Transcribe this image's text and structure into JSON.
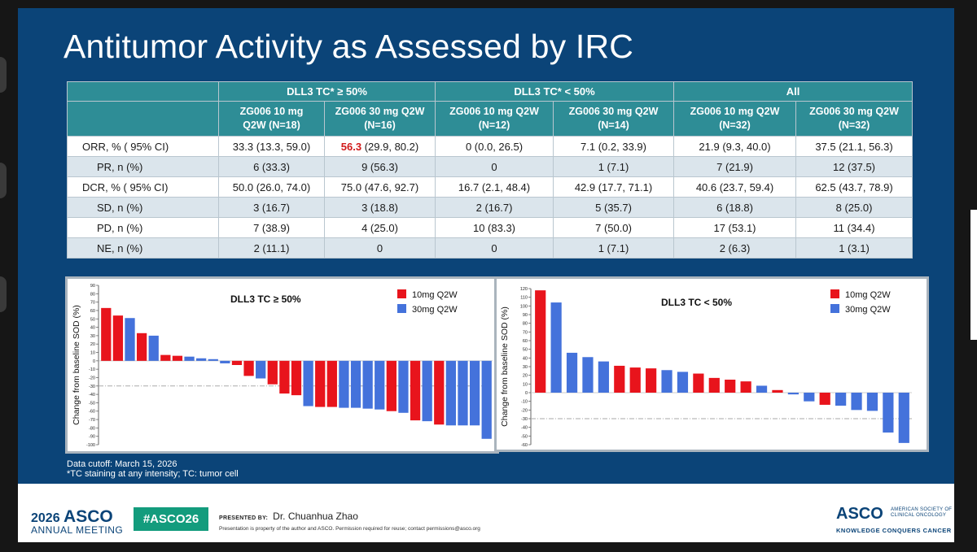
{
  "slide": {
    "title": "Antitumor Activity as Assessed by IRC"
  },
  "table": {
    "group_headers": [
      "DLL3 TC* ≥ 50%",
      "DLL3 TC* < 50%",
      "All"
    ],
    "col_headers": [
      [
        "ZG006 10 mg",
        "Q2W (N=18)"
      ],
      [
        "ZG006 30 mg Q2W",
        "(N=16)"
      ],
      [
        "ZG006 10 mg Q2W",
        "(N=12)"
      ],
      [
        "ZG006 30 mg Q2W",
        "(N=14)"
      ],
      [
        "ZG006 10 mg Q2W",
        "(N=32)"
      ],
      [
        "ZG006 30 mg Q2W",
        "(N=32)"
      ]
    ],
    "rows": [
      {
        "label": "ORR, % ( 95% CI)",
        "indent": false,
        "cells": [
          "33.3 (13.3, 59.0)",
          "56.3|(29.9, 80.2)",
          "0 (0.0, 26.5)",
          "7.1 (0.2, 33.9)",
          "21.9 (9.3, 40.0)",
          "37.5 (21.1, 56.3)"
        ]
      },
      {
        "label": "PR, n (%)",
        "indent": true,
        "cells": [
          "6 (33.3)",
          "9 (56.3)",
          "0",
          "1 (7.1)",
          "7 (21.9)",
          "12 (37.5)"
        ]
      },
      {
        "label": "DCR, % ( 95% CI)",
        "indent": false,
        "cells": [
          "50.0 (26.0, 74.0)",
          "75.0 (47.6, 92.7)",
          "16.7 (2.1, 48.4)",
          "42.9 (17.7, 71.1)",
          "40.6 (23.7, 59.4)",
          "62.5 (43.7, 78.9)"
        ]
      },
      {
        "label": "SD, n (%)",
        "indent": true,
        "cells": [
          "3 (16.7)",
          "3 (18.8)",
          "2 (16.7)",
          "5 (35.7)",
          "6 (18.8)",
          "8 (25.0)"
        ]
      },
      {
        "label": "PD, n (%)",
        "indent": true,
        "cells": [
          "7 (38.9)",
          "4 (25.0)",
          "10 (83.3)",
          "7 (50.0)",
          "17 (53.1)",
          "11 (34.4)"
        ]
      },
      {
        "label": "NE, n (%)",
        "indent": true,
        "cells": [
          "2 (11.1)",
          "0",
          "0",
          "1 (7.1)",
          "2 (6.3)",
          "1 (3.1)"
        ]
      }
    ],
    "highlight": {
      "row": 0,
      "col": 1,
      "color": "#d11a1a"
    }
  },
  "chart_data": [
    {
      "type": "bar",
      "title": "DLL3 TC ≥ 50%",
      "ylabel": "Change from baseline SOD (%)",
      "ylim": [
        -100,
        90
      ],
      "yticks": [
        90,
        80,
        70,
        60,
        50,
        40,
        30,
        20,
        10,
        0,
        -10,
        -20,
        -30,
        -40,
        -50,
        -60,
        -70,
        -80,
        -90,
        -100
      ],
      "reference_line": -30,
      "legend": [
        {
          "name": "10mg Q2W",
          "color": "#e8141c"
        },
        {
          "name": "30mg Q2W",
          "color": "#4472db"
        }
      ],
      "legend_position": "top-right",
      "bars": [
        {
          "value": 63,
          "series": "10mg Q2W"
        },
        {
          "value": 54,
          "series": "10mg Q2W"
        },
        {
          "value": 51,
          "series": "30mg Q2W"
        },
        {
          "value": 33,
          "series": "10mg Q2W"
        },
        {
          "value": 30,
          "series": "30mg Q2W"
        },
        {
          "value": 7,
          "series": "10mg Q2W"
        },
        {
          "value": 6,
          "series": "10mg Q2W"
        },
        {
          "value": 5,
          "series": "30mg Q2W"
        },
        {
          "value": 3,
          "series": "30mg Q2W"
        },
        {
          "value": 2,
          "series": "30mg Q2W"
        },
        {
          "value": -3,
          "series": "30mg Q2W"
        },
        {
          "value": -5,
          "series": "10mg Q2W"
        },
        {
          "value": -18,
          "series": "10mg Q2W"
        },
        {
          "value": -21,
          "series": "30mg Q2W"
        },
        {
          "value": -28,
          "series": "10mg Q2W"
        },
        {
          "value": -39,
          "series": "10mg Q2W"
        },
        {
          "value": -41,
          "series": "10mg Q2W"
        },
        {
          "value": -54,
          "series": "30mg Q2W"
        },
        {
          "value": -55,
          "series": "10mg Q2W"
        },
        {
          "value": -55,
          "series": "10mg Q2W"
        },
        {
          "value": -56,
          "series": "30mg Q2W"
        },
        {
          "value": -56,
          "series": "30mg Q2W"
        },
        {
          "value": -57,
          "series": "30mg Q2W"
        },
        {
          "value": -58,
          "series": "30mg Q2W"
        },
        {
          "value": -60,
          "series": "10mg Q2W"
        },
        {
          "value": -62,
          "series": "30mg Q2W"
        },
        {
          "value": -71,
          "series": "10mg Q2W"
        },
        {
          "value": -72,
          "series": "30mg Q2W"
        },
        {
          "value": -76,
          "series": "10mg Q2W"
        },
        {
          "value": -77,
          "series": "30mg Q2W"
        },
        {
          "value": -77,
          "series": "30mg Q2W"
        },
        {
          "value": -77,
          "series": "30mg Q2W"
        },
        {
          "value": -93,
          "series": "30mg Q2W"
        }
      ]
    },
    {
      "type": "bar",
      "title": "DLL3 TC  <  50%",
      "ylabel": "Change from baseline SOD (%)",
      "ylim": [
        -60,
        120
      ],
      "yticks": [
        120,
        110,
        100,
        90,
        80,
        70,
        60,
        50,
        40,
        30,
        20,
        10,
        0,
        -10,
        -20,
        -30,
        -40,
        -50,
        -60
      ],
      "reference_line": -30,
      "legend": [
        {
          "name": "10mg Q2W",
          "color": "#e8141c"
        },
        {
          "name": "30mg Q2W",
          "color": "#4472db"
        }
      ],
      "legend_position": "top-right",
      "bars": [
        {
          "value": 118,
          "series": "10mg Q2W"
        },
        {
          "value": 104,
          "series": "30mg Q2W"
        },
        {
          "value": 46,
          "series": "30mg Q2W"
        },
        {
          "value": 41,
          "series": "30mg Q2W"
        },
        {
          "value": 36,
          "series": "30mg Q2W"
        },
        {
          "value": 31,
          "series": "10mg Q2W"
        },
        {
          "value": 29,
          "series": "10mg Q2W"
        },
        {
          "value": 28,
          "series": "10mg Q2W"
        },
        {
          "value": 26,
          "series": "30mg Q2W"
        },
        {
          "value": 24,
          "series": "30mg Q2W"
        },
        {
          "value": 22,
          "series": "10mg Q2W"
        },
        {
          "value": 17,
          "series": "10mg Q2W"
        },
        {
          "value": 15,
          "series": "10mg Q2W"
        },
        {
          "value": 13,
          "series": "10mg Q2W"
        },
        {
          "value": 8,
          "series": "30mg Q2W"
        },
        {
          "value": 3,
          "series": "10mg Q2W"
        },
        {
          "value": -2,
          "series": "30mg Q2W"
        },
        {
          "value": -10,
          "series": "30mg Q2W"
        },
        {
          "value": -14,
          "series": "10mg Q2W"
        },
        {
          "value": -15,
          "series": "30mg Q2W"
        },
        {
          "value": -20,
          "series": "30mg Q2W"
        },
        {
          "value": -21,
          "series": "30mg Q2W"
        },
        {
          "value": -46,
          "series": "30mg Q2W"
        },
        {
          "value": -58,
          "series": "30mg Q2W"
        }
      ]
    }
  ],
  "notes": {
    "line1": "Data cutoff:  March 15, 2026",
    "line2": "*TC staining at any intensity; TC: tumor cell"
  },
  "footer": {
    "year": "2026",
    "asco": "ASCO",
    "annual": "ANNUAL MEETING",
    "hashtag": "#ASCO26",
    "presented_by_label": "PRESENTED BY:",
    "presenter": "Dr. Chuanhua Zhao",
    "disclaimer": "Presentation is property of the author and ASCO. Permission required for reuse; contact permissions@asco.org",
    "right_logo": "ASCO",
    "society_line1": "AMERICAN SOCIETY OF",
    "society_line2": "CLINICAL ONCOLOGY",
    "tagline": "KNOWLEDGE CONQUERS CANCER"
  }
}
